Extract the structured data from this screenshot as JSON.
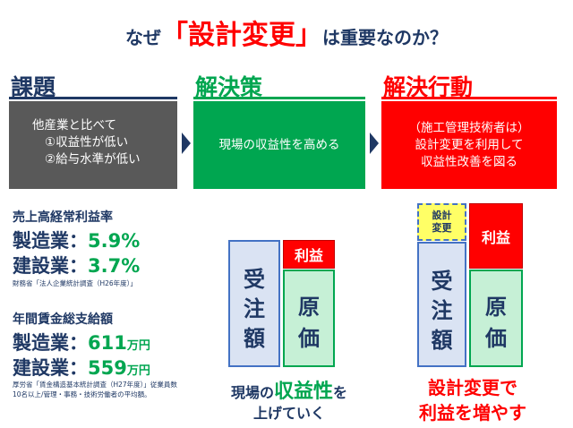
{
  "title": {
    "prefix": "なぜ",
    "emphasis": "「設計変更」",
    "suffix": "は重要なのか？"
  },
  "columns": {
    "issue": {
      "heading": "課題",
      "lines": [
        "他産業と比べて",
        "①収益性が低い",
        "②給与水準が低い"
      ]
    },
    "solution": {
      "heading": "解決策",
      "text": "現場の収益性を高める"
    },
    "action": {
      "heading": "解決行動",
      "lines": [
        "（施工管理技術者は）",
        "設計変更を利用して",
        "収益性改善を図る"
      ]
    }
  },
  "stats": {
    "profit_rate": {
      "heading": "売上高経常利益率",
      "manufacturing_label": "製造業：",
      "manufacturing_value": "5.9",
      "manufacturing_unit": "%",
      "construction_label": "建設業：",
      "construction_value": "3.7",
      "construction_unit": "%",
      "source": "財務省「法人企業統計調査（H26年度）」"
    },
    "wages": {
      "heading": "年間賃金総支給額",
      "manufacturing_label": "製造業：",
      "manufacturing_value": "611",
      "manufacturing_unit": "万円",
      "construction_label": "建設業：",
      "construction_value": "559",
      "construction_unit": "万円",
      "source": "厚労省「賃金構造基本統計調査（H27年度）」従業員数10名以上/管理・事務・技術労働者の平均額。"
    }
  },
  "diagram_left": {
    "orders": [
      "受",
      "注",
      "額"
    ],
    "profit": "利益",
    "cost": [
      "原",
      "価"
    ],
    "caption_pre": "現場の",
    "caption_highlight": "収益性",
    "caption_post": "を",
    "caption_line2": "上げていく"
  },
  "diagram_right": {
    "design_change": [
      "設計",
      "変更"
    ],
    "orders": [
      "受",
      "注",
      "額"
    ],
    "profit": "利益",
    "cost": [
      "原",
      "価"
    ],
    "caption_line1": "設計変更で",
    "caption_line2": "利益を増やす"
  },
  "colors": {
    "navy": "#1f3864",
    "green": "#00a650",
    "red": "#ff0000",
    "gray": "#595959",
    "light_blue": "#dae3f3",
    "light_green": "#c6f0d6",
    "yellow": "#ffff66"
  }
}
